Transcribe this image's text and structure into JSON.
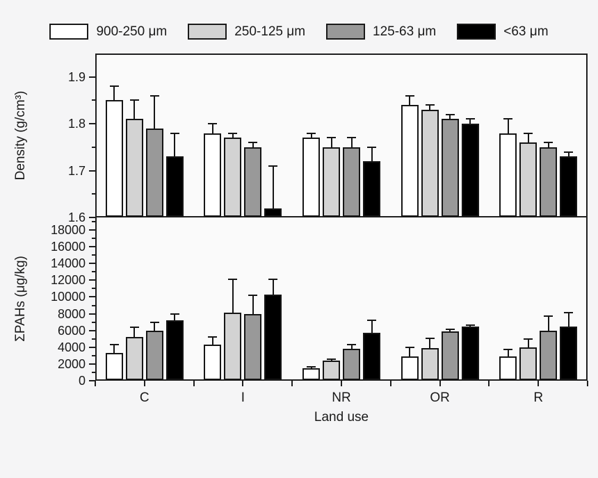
{
  "colors": {
    "background": "#f5f5f6",
    "panel": "#fafafa",
    "axis": "#1f1f1f",
    "text": "#1a1a1a"
  },
  "legend": {
    "position": "top",
    "items": [
      {
        "label": "900-250 μm",
        "color": "#ffffff"
      },
      {
        "label": "250-125 μm",
        "color": "#d3d3d3"
      },
      {
        "label": "125-63 μm",
        "color": "#999999"
      },
      {
        "label": "<63 μm",
        "color": "#000000"
      }
    ]
  },
  "chart_data": [
    {
      "type": "bar",
      "panel": "top",
      "ylabel": "Density (g/cm³)",
      "xlabel": "",
      "grid": false,
      "categories": [
        "C",
        "I",
        "NR",
        "OR",
        "R"
      ],
      "ylim": [
        1.6,
        1.95
      ],
      "yticks_major": [
        {
          "v": 1.9,
          "label": "1.9"
        },
        {
          "v": 1.8,
          "label": "1.8"
        },
        {
          "v": 1.7,
          "label": "1.7"
        },
        {
          "v": 1.6,
          "label": "1.6"
        }
      ],
      "yticks_minor": [
        1.85,
        1.75,
        1.65
      ],
      "series": [
        {
          "name": "900-250 μm",
          "color": "#ffffff",
          "values": [
            1.85,
            1.78,
            1.77,
            1.84,
            1.78
          ],
          "errors": [
            0.03,
            0.02,
            0.01,
            0.02,
            0.03
          ]
        },
        {
          "name": "250-125 μm",
          "color": "#d3d3d3",
          "values": [
            1.81,
            1.77,
            1.75,
            1.83,
            1.76
          ],
          "errors": [
            0.04,
            0.01,
            0.02,
            0.01,
            0.02
          ]
        },
        {
          "name": "125-63 μm",
          "color": "#999999",
          "values": [
            1.79,
            1.75,
            1.75,
            1.81,
            1.75
          ],
          "errors": [
            0.07,
            0.01,
            0.02,
            0.01,
            0.01
          ]
        },
        {
          "name": "<63 μm",
          "color": "#000000",
          "values": [
            1.73,
            1.62,
            1.72,
            1.8,
            1.73
          ],
          "errors": [
            0.05,
            0.09,
            0.03,
            0.01,
            0.01
          ]
        }
      ]
    },
    {
      "type": "bar",
      "panel": "bottom",
      "ylabel": "ΣPAHs (μg/kg)",
      "xlabel": "Land use",
      "grid": false,
      "categories": [
        "C",
        "I",
        "NR",
        "OR",
        "R"
      ],
      "ylim": [
        0,
        19500
      ],
      "yticks_major": [
        {
          "v": 18000,
          "label": "18000"
        },
        {
          "v": 16000,
          "label": "16000"
        },
        {
          "v": 14000,
          "label": "14000"
        },
        {
          "v": 12000,
          "label": "12000"
        },
        {
          "v": 10000,
          "label": "10000"
        },
        {
          "v": 8000,
          "label": "8000"
        },
        {
          "v": 6000,
          "label": "6000"
        },
        {
          "v": 4000,
          "label": "4000"
        },
        {
          "v": 2000,
          "label": "2000"
        },
        {
          "v": 0,
          "label": "0"
        }
      ],
      "yticks_minor": [
        19000,
        17000,
        15000,
        13000,
        11000,
        9000,
        7000,
        5000,
        3000,
        1000
      ],
      "series": [
        {
          "name": "900-250 μm",
          "color": "#ffffff",
          "values": [
            3300,
            4300,
            1500,
            2900,
            2900
          ],
          "errors": [
            1000,
            900,
            150,
            1100,
            800
          ]
        },
        {
          "name": "250-125 μm",
          "color": "#d3d3d3",
          "values": [
            5200,
            8100,
            2400,
            3900,
            4000
          ],
          "errors": [
            1200,
            4000,
            200,
            1200,
            1000
          ]
        },
        {
          "name": "125-63 μm",
          "color": "#999999",
          "values": [
            6000,
            8000,
            3800,
            5900,
            6000
          ],
          "errors": [
            1000,
            2200,
            500,
            200,
            1700
          ]
        },
        {
          "name": "<63 μm",
          "color": "#000000",
          "values": [
            7200,
            10300,
            5700,
            6500,
            6500
          ],
          "errors": [
            800,
            1800,
            1500,
            150,
            1600
          ]
        }
      ]
    }
  ]
}
